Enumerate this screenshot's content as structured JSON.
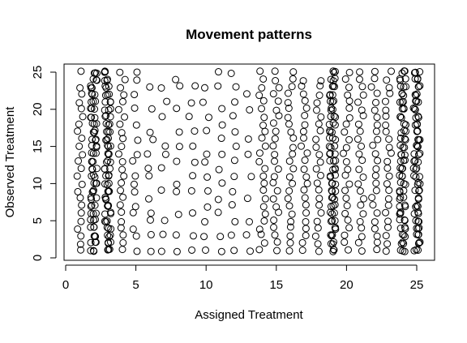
{
  "chart_data": {
    "type": "scatter",
    "title": "Movement patterns",
    "xlabel": "Assigned Treatment",
    "ylabel": "Observed Treatment",
    "xlim": [
      0,
      27
    ],
    "ylim": [
      0,
      26
    ],
    "x_ticks": [
      0,
      5,
      10,
      15,
      20,
      25
    ],
    "y_ticks": [
      0,
      5,
      10,
      15,
      20,
      25
    ],
    "grid": false,
    "legend": "none",
    "marker": "open-circle",
    "x_values": [
      1,
      2,
      3,
      4,
      5,
      6,
      7,
      8,
      9,
      10,
      11,
      12,
      13,
      14,
      15,
      16,
      17,
      18,
      19,
      20,
      21,
      22,
      23,
      24,
      25
    ],
    "y_values": [
      1,
      2,
      3,
      4,
      5,
      6,
      7,
      8,
      9,
      10,
      11,
      12,
      13,
      14,
      15,
      16,
      17,
      18,
      19,
      20,
      21,
      22,
      23,
      24,
      25
    ],
    "density_note": "",
    "points": [
      [
        1,
        1
      ],
      [
        1,
        2
      ],
      [
        1,
        3
      ],
      [
        1,
        4
      ],
      [
        1,
        5
      ],
      [
        1,
        6
      ],
      [
        1,
        7
      ],
      [
        1,
        8
      ],
      [
        1,
        9
      ],
      [
        1,
        10
      ],
      [
        1,
        11
      ],
      [
        1,
        12
      ],
      [
        1,
        13
      ],
      [
        1,
        14
      ],
      [
        1,
        15
      ],
      [
        1,
        16
      ],
      [
        1,
        17
      ],
      [
        1,
        18
      ],
      [
        1,
        19
      ],
      [
        1,
        20
      ],
      [
        1,
        21
      ],
      [
        1,
        22
      ],
      [
        1,
        23
      ],
      [
        1,
        25
      ],
      [
        4,
        1
      ],
      [
        4,
        2
      ],
      [
        4,
        3
      ],
      [
        4,
        4
      ],
      [
        4,
        5
      ],
      [
        4,
        6
      ],
      [
        4,
        7
      ],
      [
        4,
        8
      ],
      [
        4,
        9
      ],
      [
        4,
        10
      ],
      [
        4,
        11
      ],
      [
        4,
        12
      ],
      [
        4,
        13
      ],
      [
        4,
        14
      ],
      [
        4,
        15
      ],
      [
        4,
        16
      ],
      [
        4,
        17
      ],
      [
        4,
        18
      ],
      [
        4,
        19
      ],
      [
        4,
        20
      ],
      [
        4,
        21
      ],
      [
        4,
        22
      ],
      [
        4,
        23
      ],
      [
        4,
        24
      ],
      [
        4,
        25
      ],
      [
        5,
        1
      ],
      [
        5,
        3
      ],
      [
        5,
        4
      ],
      [
        5,
        6
      ],
      [
        5,
        7
      ],
      [
        5,
        9
      ],
      [
        5,
        10
      ],
      [
        5,
        11
      ],
      [
        5,
        13
      ],
      [
        5,
        14
      ],
      [
        5,
        16
      ],
      [
        5,
        18
      ],
      [
        5,
        20
      ],
      [
        5,
        22
      ],
      [
        5,
        24
      ],
      [
        5,
        25
      ],
      [
        6,
        1
      ],
      [
        6,
        3
      ],
      [
        6,
        5
      ],
      [
        6,
        6
      ],
      [
        6,
        8
      ],
      [
        6,
        11
      ],
      [
        6,
        12
      ],
      [
        6,
        14
      ],
      [
        6,
        16
      ],
      [
        6,
        17
      ],
      [
        6,
        20
      ],
      [
        6,
        23
      ],
      [
        7,
        1
      ],
      [
        7,
        3
      ],
      [
        7,
        5
      ],
      [
        7,
        9
      ],
      [
        7,
        12
      ],
      [
        7,
        14
      ],
      [
        7,
        15
      ],
      [
        7,
        19
      ],
      [
        7,
        21
      ],
      [
        7,
        23
      ],
      [
        8,
        1
      ],
      [
        8,
        3
      ],
      [
        8,
        6
      ],
      [
        8,
        9
      ],
      [
        8,
        10
      ],
      [
        8,
        13
      ],
      [
        8,
        15
      ],
      [
        8,
        17
      ],
      [
        8,
        20
      ],
      [
        8,
        23
      ],
      [
        8,
        24
      ],
      [
        9,
        1
      ],
      [
        9,
        3
      ],
      [
        9,
        6
      ],
      [
        9,
        9
      ],
      [
        9,
        11
      ],
      [
        9,
        13
      ],
      [
        9,
        15
      ],
      [
        9,
        17
      ],
      [
        9,
        19
      ],
      [
        9,
        21
      ],
      [
        9,
        23
      ],
      [
        10,
        1
      ],
      [
        10,
        3
      ],
      [
        10,
        5
      ],
      [
        10,
        7
      ],
      [
        10,
        9
      ],
      [
        10,
        11
      ],
      [
        10,
        13
      ],
      [
        10,
        14
      ],
      [
        10,
        17
      ],
      [
        10,
        19
      ],
      [
        10,
        21
      ],
      [
        10,
        23
      ],
      [
        11,
        1
      ],
      [
        11,
        3
      ],
      [
        11,
        6
      ],
      [
        11,
        8
      ],
      [
        11,
        10
      ],
      [
        11,
        12
      ],
      [
        11,
        14
      ],
      [
        11,
        16
      ],
      [
        11,
        18
      ],
      [
        11,
        20
      ],
      [
        11,
        23
      ],
      [
        11,
        25
      ],
      [
        12,
        1
      ],
      [
        12,
        3
      ],
      [
        12,
        5
      ],
      [
        12,
        7
      ],
      [
        12,
        9
      ],
      [
        12,
        11
      ],
      [
        12,
        13
      ],
      [
        12,
        15
      ],
      [
        12,
        17
      ],
      [
        12,
        19
      ],
      [
        12,
        21
      ],
      [
        12,
        23
      ],
      [
        12,
        25
      ],
      [
        13,
        1
      ],
      [
        13,
        3
      ],
      [
        13,
        5
      ],
      [
        13,
        8
      ],
      [
        13,
        11
      ],
      [
        13,
        14
      ],
      [
        13,
        16
      ],
      [
        13,
        20
      ],
      [
        13,
        22
      ],
      [
        14,
        1
      ],
      [
        14,
        2
      ],
      [
        14,
        3
      ],
      [
        14,
        4
      ],
      [
        14,
        5
      ],
      [
        14,
        6
      ],
      [
        14,
        7
      ],
      [
        14,
        8
      ],
      [
        14,
        9
      ],
      [
        14,
        10
      ],
      [
        14,
        11
      ],
      [
        14,
        12
      ],
      [
        14,
        13
      ],
      [
        14,
        14
      ],
      [
        14,
        15
      ],
      [
        14,
        16
      ],
      [
        14,
        17
      ],
      [
        14,
        18
      ],
      [
        14,
        19
      ],
      [
        14,
        20
      ],
      [
        14,
        21
      ],
      [
        14,
        22
      ],
      [
        14,
        23
      ],
      [
        14,
        24
      ],
      [
        14,
        25
      ],
      [
        15,
        1
      ],
      [
        15,
        2
      ],
      [
        15,
        3
      ],
      [
        15,
        4
      ],
      [
        15,
        5
      ],
      [
        15,
        6
      ],
      [
        15,
        7
      ],
      [
        15,
        8
      ],
      [
        15,
        9
      ],
      [
        15,
        10
      ],
      [
        15,
        11
      ],
      [
        15,
        12
      ],
      [
        15,
        13
      ],
      [
        15,
        14
      ],
      [
        15,
        15
      ],
      [
        15,
        16
      ],
      [
        15,
        17
      ],
      [
        15,
        18
      ],
      [
        15,
        19
      ],
      [
        15,
        20
      ],
      [
        15,
        21
      ],
      [
        15,
        22
      ],
      [
        15,
        23
      ],
      [
        15,
        24
      ],
      [
        15,
        25
      ],
      [
        16,
        1
      ],
      [
        16,
        2
      ],
      [
        16,
        3
      ],
      [
        16,
        4
      ],
      [
        16,
        5
      ],
      [
        16,
        6
      ],
      [
        16,
        7
      ],
      [
        16,
        8
      ],
      [
        16,
        9
      ],
      [
        16,
        10
      ],
      [
        16,
        11
      ],
      [
        16,
        12
      ],
      [
        16,
        13
      ],
      [
        16,
        14
      ],
      [
        16,
        15
      ],
      [
        16,
        16
      ],
      [
        16,
        17
      ],
      [
        16,
        18
      ],
      [
        16,
        19
      ],
      [
        16,
        20
      ],
      [
        16,
        21
      ],
      [
        16,
        22
      ],
      [
        16,
        23
      ],
      [
        16,
        24
      ],
      [
        16,
        25
      ],
      [
        17,
        1
      ],
      [
        17,
        2
      ],
      [
        17,
        3
      ],
      [
        17,
        4
      ],
      [
        17,
        5
      ],
      [
        17,
        6
      ],
      [
        17,
        7
      ],
      [
        17,
        8
      ],
      [
        17,
        9
      ],
      [
        17,
        10
      ],
      [
        17,
        11
      ],
      [
        17,
        12
      ],
      [
        17,
        13
      ],
      [
        17,
        14
      ],
      [
        17,
        15
      ],
      [
        17,
        16
      ],
      [
        17,
        17
      ],
      [
        17,
        18
      ],
      [
        17,
        19
      ],
      [
        17,
        20
      ],
      [
        17,
        21
      ],
      [
        17,
        22
      ],
      [
        17,
        23
      ],
      [
        17,
        24
      ],
      [
        18,
        1
      ],
      [
        18,
        2
      ],
      [
        18,
        3
      ],
      [
        18,
        4
      ],
      [
        18,
        5
      ],
      [
        18,
        6
      ],
      [
        18,
        7
      ],
      [
        18,
        8
      ],
      [
        18,
        9
      ],
      [
        18,
        10
      ],
      [
        18,
        11
      ],
      [
        18,
        12
      ],
      [
        18,
        13
      ],
      [
        18,
        14
      ],
      [
        18,
        15
      ],
      [
        18,
        16
      ],
      [
        18,
        17
      ],
      [
        18,
        18
      ],
      [
        18,
        19
      ],
      [
        18,
        20
      ],
      [
        18,
        21
      ],
      [
        18,
        22
      ],
      [
        18,
        23
      ],
      [
        18,
        24
      ],
      [
        20,
        1
      ],
      [
        20,
        2
      ],
      [
        20,
        3
      ],
      [
        20,
        4
      ],
      [
        20,
        5
      ],
      [
        20,
        6
      ],
      [
        20,
        7
      ],
      [
        20,
        8
      ],
      [
        20,
        9
      ],
      [
        20,
        10
      ],
      [
        20,
        11
      ],
      [
        20,
        12
      ],
      [
        20,
        13
      ],
      [
        20,
        14
      ],
      [
        20,
        15
      ],
      [
        20,
        16
      ],
      [
        20,
        17
      ],
      [
        20,
        18
      ],
      [
        20,
        19
      ],
      [
        20,
        20
      ],
      [
        20,
        21
      ],
      [
        20,
        22
      ],
      [
        20,
        23
      ],
      [
        20,
        24
      ],
      [
        20,
        25
      ],
      [
        21,
        1
      ],
      [
        21,
        2
      ],
      [
        21,
        3
      ],
      [
        21,
        4
      ],
      [
        21,
        5
      ],
      [
        21,
        6
      ],
      [
        21,
        7
      ],
      [
        21,
        8
      ],
      [
        21,
        9
      ],
      [
        21,
        10
      ],
      [
        21,
        11
      ],
      [
        21,
        12
      ],
      [
        21,
        13
      ],
      [
        21,
        14
      ],
      [
        21,
        15
      ],
      [
        21,
        16
      ],
      [
        21,
        17
      ],
      [
        21,
        18
      ],
      [
        21,
        19
      ],
      [
        21,
        20
      ],
      [
        21,
        21
      ],
      [
        21,
        22
      ],
      [
        21,
        23
      ],
      [
        21,
        24
      ],
      [
        21,
        25
      ],
      [
        22,
        1
      ],
      [
        22,
        2
      ],
      [
        22,
        3
      ],
      [
        22,
        4
      ],
      [
        22,
        5
      ],
      [
        22,
        6
      ],
      [
        22,
        7
      ],
      [
        22,
        8
      ],
      [
        22,
        9
      ],
      [
        22,
        10
      ],
      [
        22,
        11
      ],
      [
        22,
        12
      ],
      [
        22,
        13
      ],
      [
        22,
        14
      ],
      [
        22,
        15
      ],
      [
        22,
        16
      ],
      [
        22,
        17
      ],
      [
        22,
        18
      ],
      [
        22,
        19
      ],
      [
        22,
        20
      ],
      [
        22,
        21
      ],
      [
        22,
        22
      ],
      [
        22,
        23
      ],
      [
        22,
        24
      ],
      [
        22,
        25
      ],
      [
        23,
        1
      ],
      [
        23,
        2
      ],
      [
        23,
        3
      ],
      [
        23,
        4
      ],
      [
        23,
        5
      ],
      [
        23,
        6
      ],
      [
        23,
        7
      ],
      [
        23,
        8
      ],
      [
        23,
        9
      ],
      [
        23,
        10
      ],
      [
        23,
        11
      ],
      [
        23,
        12
      ],
      [
        23,
        13
      ],
      [
        23,
        14
      ],
      [
        23,
        15
      ],
      [
        23,
        16
      ],
      [
        23,
        17
      ],
      [
        23,
        18
      ],
      [
        23,
        19
      ],
      [
        23,
        20
      ],
      [
        23,
        21
      ],
      [
        23,
        22
      ],
      [
        23,
        23
      ],
      [
        23,
        24
      ],
      [
        23,
        25
      ]
    ],
    "dense_columns": [
      2,
      3,
      19,
      24,
      25
    ],
    "dense_rows": [
      1,
      2,
      3,
      4,
      5,
      6,
      7,
      8,
      9,
      10,
      11,
      12,
      13,
      14,
      15,
      16,
      17,
      18,
      19,
      20,
      21,
      22,
      23,
      24,
      25
    ]
  }
}
